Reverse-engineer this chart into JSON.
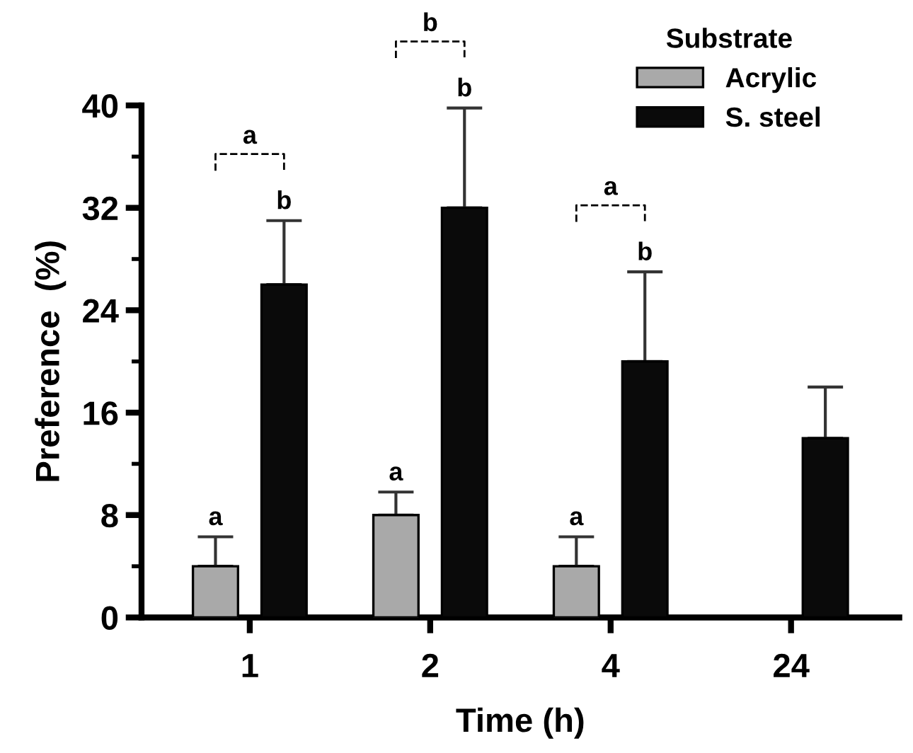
{
  "chart_data": {
    "type": "bar",
    "xlabel": "Time (h)",
    "ylabel": "Preference  (%)",
    "legend_title": "Substrate",
    "categories": [
      "1",
      "2",
      "4",
      "24"
    ],
    "series": [
      {
        "name": "Acrylic",
        "color": "#a9a9a9",
        "values": [
          4,
          8,
          4,
          null
        ],
        "errors": [
          [
            4,
            6.3
          ],
          [
            8,
            9.8
          ],
          [
            4,
            6.3
          ],
          null
        ]
      },
      {
        "name": "S. steel",
        "color": "#0a0a0a",
        "values": [
          26,
          32,
          20,
          14
        ],
        "errors": [
          [
            26,
            31
          ],
          [
            32,
            39.8
          ],
          [
            20,
            27
          ],
          [
            14,
            18
          ]
        ]
      }
    ],
    "annotations": [
      "a",
      "b",
      "a",
      "a",
      "b",
      "b",
      "a",
      "b",
      "a"
    ],
    "ylim": [
      0,
      40
    ],
    "yticks": [
      0,
      8,
      16,
      24,
      32,
      40
    ],
    "grid": false,
    "legend": "top right"
  }
}
